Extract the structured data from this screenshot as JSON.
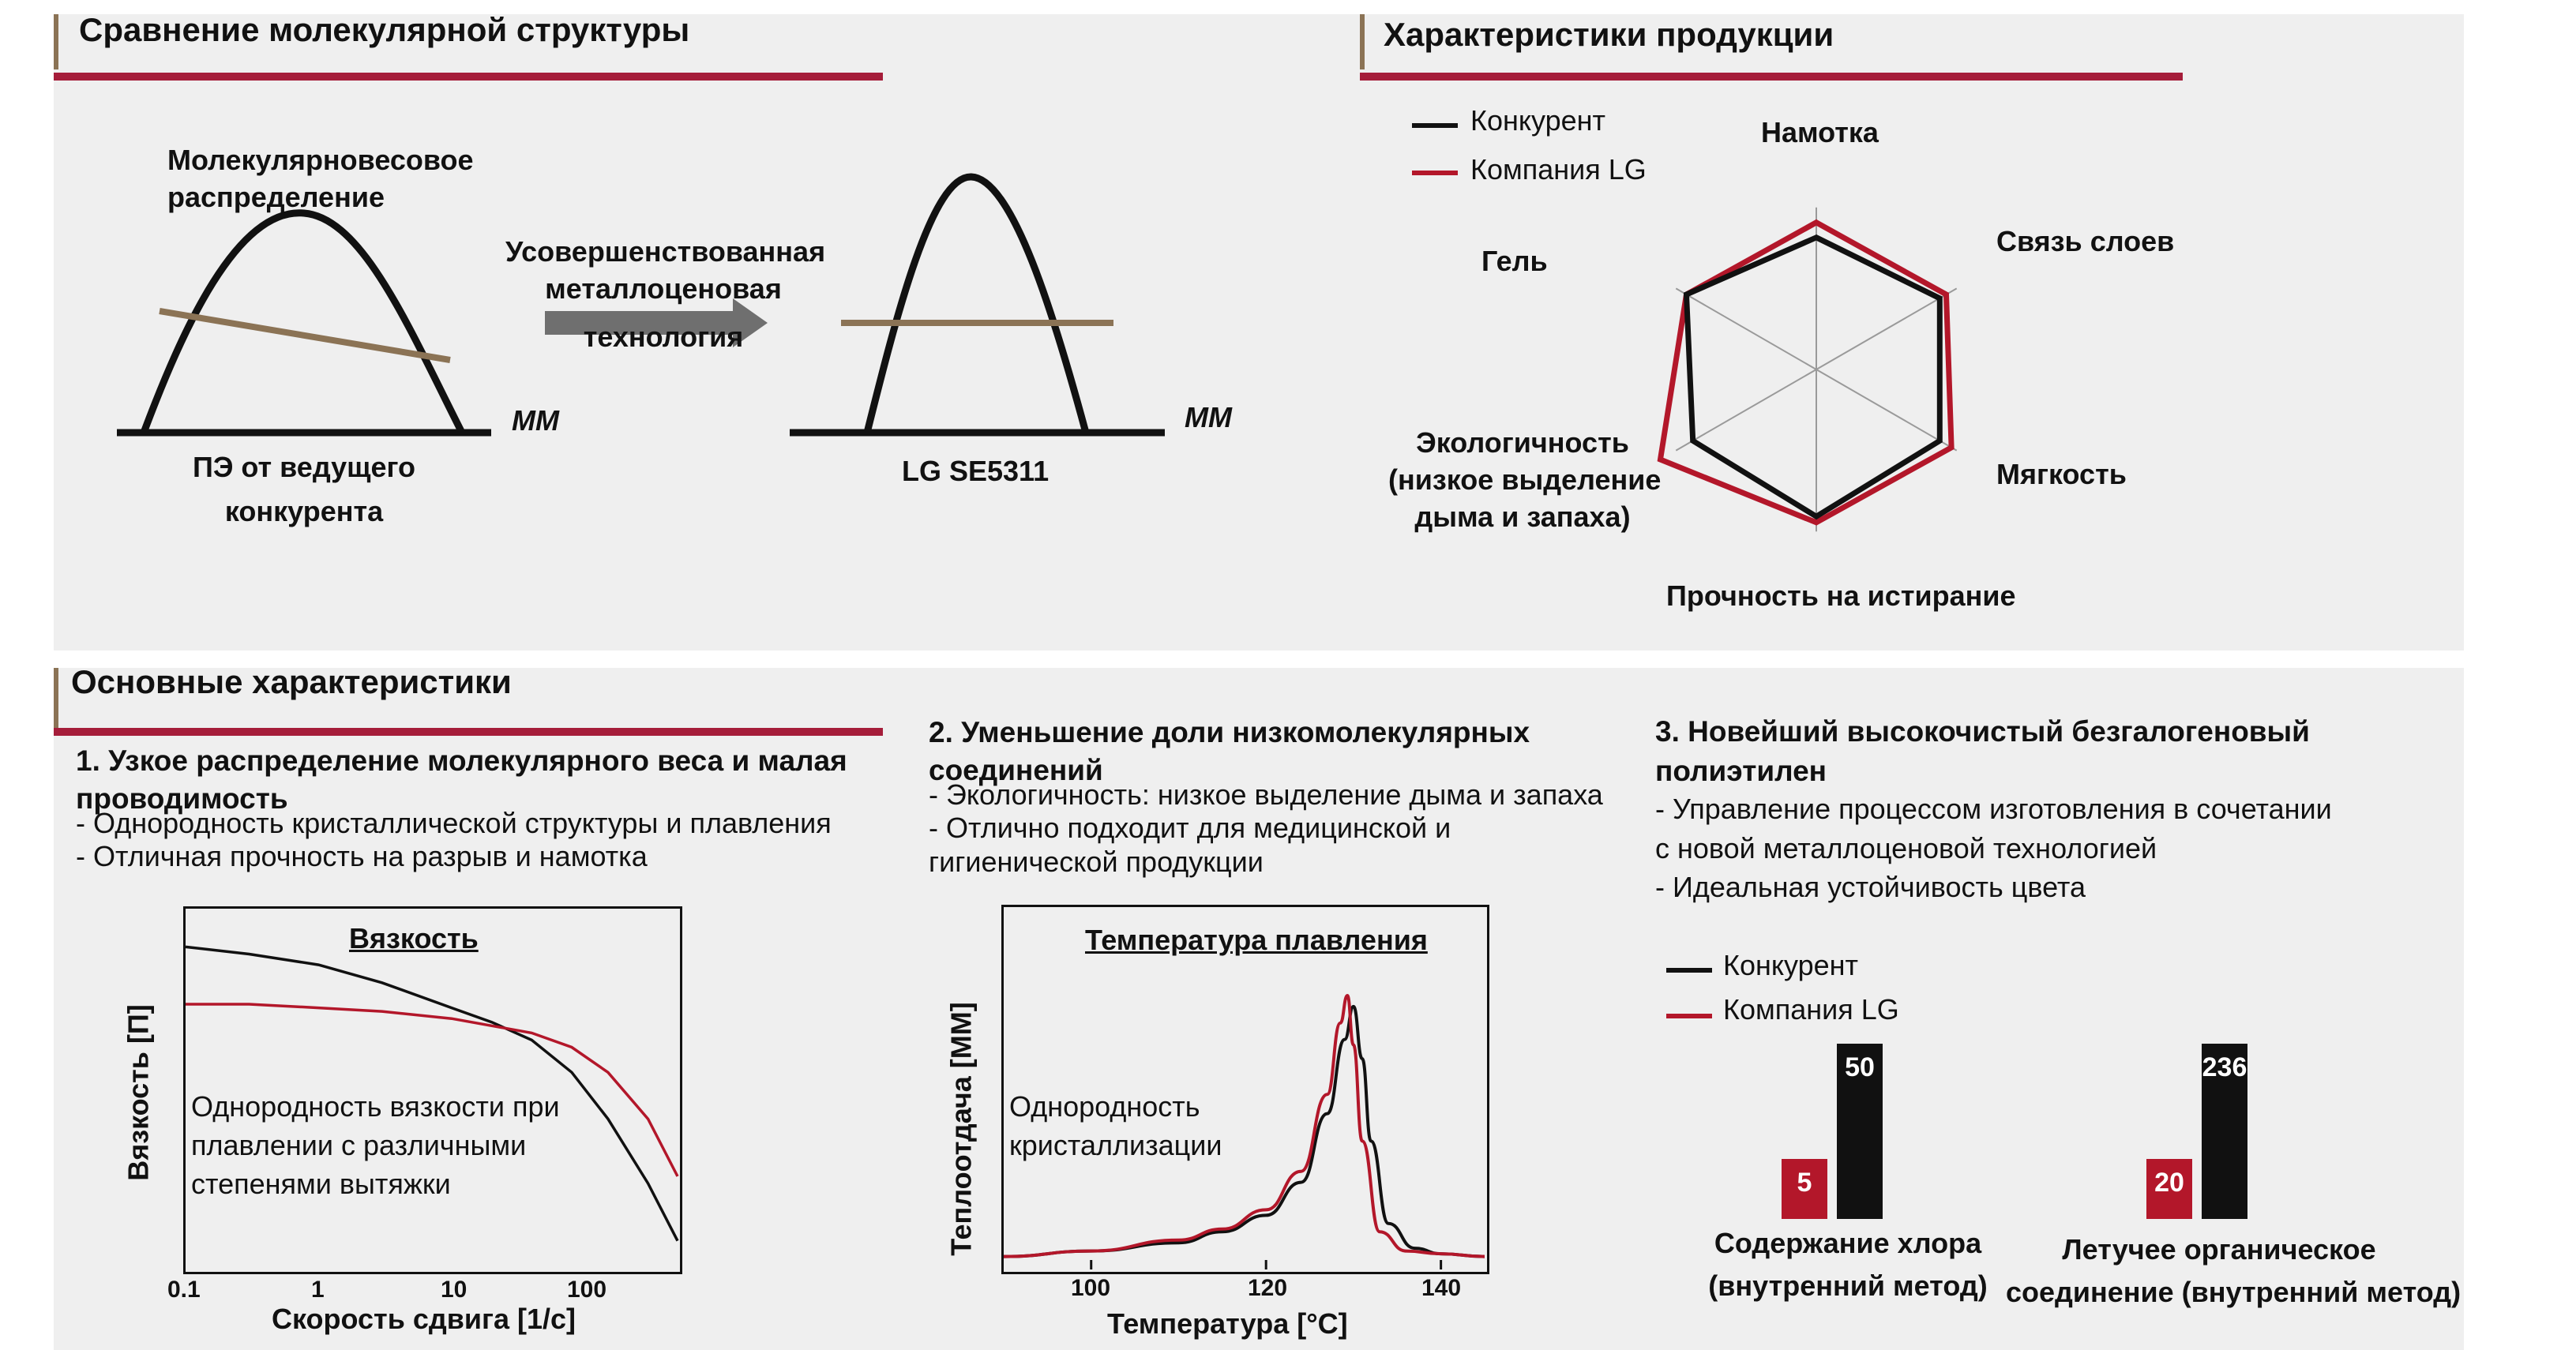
{
  "molecular": {
    "title": "Сравнение молекулярной структуры",
    "mwd_label": "Молекулярновесовое распределение",
    "mwd_label_lines": [
      "Молекулярновесовое",
      "распределение"
    ],
    "arrow_label_lines": [
      "Усовершенствованная",
      "металлоценовая",
      "технология"
    ],
    "mm_left": "MM",
    "mm_right": "MM",
    "left_caption_lines": [
      "ПЭ от ведущего",
      "конкурента"
    ],
    "right_caption": "LG SE5311"
  },
  "radar": {
    "title": "Характеристики продукции",
    "legend": [
      {
        "name": "Конкурент",
        "color": "#111111"
      },
      {
        "name": "Компания LG",
        "color": "#b3172a"
      }
    ],
    "axes": {
      "top": "Намотка",
      "top_right": "Связь слоев",
      "bottom_right": "Мягкость",
      "bottom": "Прочность на истирание",
      "bottom_left_lines": [
        "Экологичность",
        "(низкое выделение",
        "дыма и запаха)"
      ],
      "top_left": "Гель"
    }
  },
  "main": {
    "title": "Основные характеристики",
    "item1": {
      "heading_lines": [
        "1. Узкое распределение молекулярного веса и малая",
        "проводимость"
      ],
      "bullets": [
        "- Однородность кристаллической структуры и плавления",
        "- Отличная прочность на разрыв и намотка"
      ]
    },
    "item2": {
      "heading_lines": [
        "2. Уменьшение доли низкомолекулярных",
        "соединений"
      ],
      "bullets": [
        "- Экологичность: низкое выделение дыма и запаха",
        "- Отлично подходит для медицинской и",
        "гигиенической продукции"
      ]
    },
    "item3": {
      "heading_lines": [
        "3. Новейший высокочистый безгалогеновый",
        "полиэтилен"
      ],
      "bullets": [
        "-  Управление процессом изготовления в сочетании",
        "с новой металлоценовой технологией",
        "- Идеальная устойчивость цвета"
      ]
    }
  },
  "colors": {
    "competitor": "#111111",
    "lg": "#b3172a",
    "accent_bar": "#a51d3a",
    "tan": "#8b7355",
    "panel": "#efefef"
  },
  "chart_data": [
    {
      "type": "line",
      "title": "Вязкость",
      "xlabel": "Скорость сдвига [1/с]",
      "ylabel": "Вязкость [П]",
      "x_scale": "log",
      "x_ticks": [
        "0.1",
        "1",
        "10",
        "100"
      ],
      "annotation_lines": [
        "Однородность вязкости при",
        "плавлении с различными",
        "степенями вытяжки"
      ],
      "series": [
        {
          "name": "Конкурент",
          "color": "#111111",
          "x": [
            0.1,
            0.3,
            1,
            3,
            10,
            20,
            40,
            80,
            150,
            300,
            500
          ],
          "y": [
            0.9,
            0.88,
            0.85,
            0.8,
            0.73,
            0.69,
            0.64,
            0.55,
            0.42,
            0.24,
            0.08
          ]
        },
        {
          "name": "Компания LG",
          "color": "#b3172a",
          "x": [
            0.1,
            0.3,
            1,
            3,
            10,
            20,
            40,
            80,
            150,
            300,
            500
          ],
          "y": [
            0.74,
            0.74,
            0.73,
            0.72,
            0.7,
            0.68,
            0.66,
            0.62,
            0.55,
            0.42,
            0.26
          ]
        }
      ]
    },
    {
      "type": "line",
      "title": "Температура плавления",
      "xlabel": "Температура [°C]",
      "ylabel": "Теплоотдача [MM]",
      "x_ticks": [
        "100",
        "120",
        "140"
      ],
      "xlim": [
        90,
        145
      ],
      "annotation_lines": [
        "Однородность",
        "кристаллизации"
      ],
      "series": [
        {
          "name": "Конкурент",
          "color": "#111111",
          "x": [
            90,
            100,
            110,
            115,
            120,
            124,
            127,
            129,
            130,
            131,
            132,
            134,
            137,
            140,
            145
          ],
          "y": [
            0.03,
            0.05,
            0.08,
            0.12,
            0.18,
            0.3,
            0.55,
            0.82,
            0.94,
            0.75,
            0.45,
            0.15,
            0.06,
            0.04,
            0.03
          ]
        },
        {
          "name": "Компания LG",
          "color": "#b3172a",
          "x": [
            90,
            100,
            110,
            115,
            120,
            124,
            127,
            128.5,
            129.3,
            130,
            131,
            133,
            136,
            140,
            145
          ],
          "y": [
            0.03,
            0.05,
            0.09,
            0.13,
            0.2,
            0.34,
            0.62,
            0.88,
            0.98,
            0.8,
            0.45,
            0.12,
            0.05,
            0.04,
            0.03
          ]
        }
      ]
    },
    {
      "type": "bar",
      "categories_lines": [
        [
          "Содержание хлора",
          "(внутренний метод)"
        ],
        [
          "Летучее органическое",
          "соединение (внутренний метод)"
        ]
      ],
      "legend": [
        "Конкурент",
        "Компания LG"
      ],
      "series": [
        {
          "name": "Компания LG",
          "color": "#b3172a",
          "values": [
            5,
            20
          ],
          "labels": [
            "5",
            "20"
          ]
        },
        {
          "name": "Конкурент",
          "color": "#111111",
          "values": [
            50,
            236
          ],
          "labels": [
            "50",
            "236"
          ]
        }
      ]
    },
    {
      "type": "radar",
      "axes": [
        "Намотка",
        "Связь слоев",
        "Мягкость",
        "Прочность на истирание",
        "Экологичность (низкое выделение дыма и запаха)",
        "Гель"
      ],
      "series": [
        {
          "name": "Конкурент",
          "color": "#111111",
          "values": [
            0.88,
            0.95,
            0.95,
            0.98,
            0.95,
            1.0
          ]
        },
        {
          "name": "Компания LG",
          "color": "#b3172a",
          "values": [
            0.98,
            1.0,
            1.04,
            1.02,
            1.2,
            1.0
          ]
        }
      ]
    }
  ]
}
